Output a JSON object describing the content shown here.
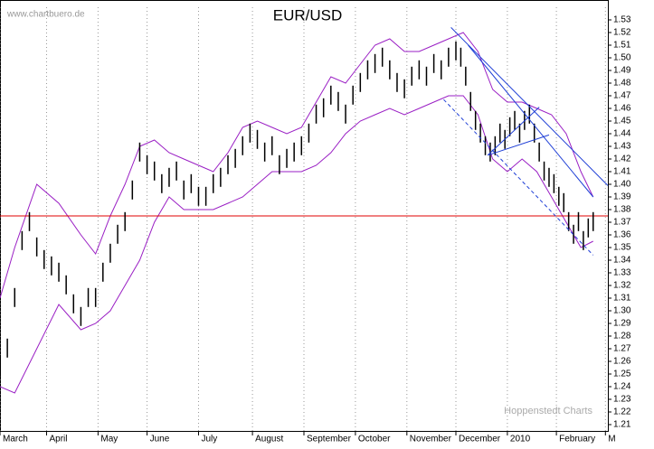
{
  "chart_data": {
    "type": "ohlc",
    "title": "EUR/USD",
    "source": "www.chartbuero.de",
    "credit": "Hoppenstedt Charts",
    "xlim": [
      0,
      248
    ],
    "ylim": [
      1.205,
      1.54
    ],
    "xticks": [
      {
        "value": 0,
        "label": "March"
      },
      {
        "value": 19,
        "label": "April"
      },
      {
        "value": 40,
        "label": "May"
      },
      {
        "value": 60,
        "label": "June"
      },
      {
        "value": 81,
        "label": "July"
      },
      {
        "value": 103,
        "label": "August"
      },
      {
        "value": 124,
        "label": "September"
      },
      {
        "value": 145,
        "label": "October"
      },
      {
        "value": 166,
        "label": "November"
      },
      {
        "value": 186,
        "label": "December"
      },
      {
        "value": 207,
        "label": "2010"
      },
      {
        "value": 227,
        "label": "February"
      },
      {
        "value": 247,
        "label": "M"
      }
    ],
    "yticks": [
      1.21,
      {
        "value": 1.22,
        "label": "1.22"
      },
      1.23,
      1.24,
      1.25,
      1.26,
      1.27,
      1.28,
      1.29,
      {
        "value": 1.3,
        "label": "1.30"
      },
      1.31,
      1.32,
      1.33,
      1.34,
      1.35,
      1.36,
      1.37,
      1.38,
      1.39,
      {
        "value": 1.4,
        "label": "1.40"
      },
      1.41,
      1.42,
      1.43,
      1.44,
      1.45,
      1.46,
      1.47,
      1.48,
      1.49,
      {
        "value": 1.5,
        "label": "1.50"
      },
      1.51,
      1.52,
      1.53
    ],
    "bars": {
      "color": "#000000",
      "x": [
        0,
        3,
        6,
        9,
        12,
        15,
        18,
        21,
        24,
        27,
        30,
        33,
        36,
        39,
        42,
        45,
        48,
        51,
        54,
        57,
        60,
        63,
        66,
        69,
        72,
        75,
        78,
        81,
        84,
        87,
        90,
        93,
        96,
        99,
        102,
        105,
        108,
        111,
        114,
        117,
        120,
        123,
        126,
        129,
        132,
        135,
        138,
        141,
        144,
        147,
        150,
        153,
        156,
        159,
        162,
        165,
        168,
        171,
        174,
        177,
        180,
        183,
        186,
        188,
        190,
        192,
        194,
        196,
        198,
        200,
        202,
        204,
        206,
        208,
        210,
        212,
        214,
        216,
        218,
        220,
        222,
        224,
        226,
        228,
        230,
        232,
        234,
        236,
        238,
        240,
        242
      ],
      "high": [
        1.263,
        1.278,
        1.318,
        1.363,
        1.378,
        1.358,
        1.348,
        1.343,
        1.338,
        1.328,
        1.313,
        1.303,
        1.318,
        1.318,
        1.338,
        1.353,
        1.368,
        1.378,
        1.403,
        1.433,
        1.423,
        1.418,
        1.408,
        1.413,
        1.418,
        1.403,
        1.408,
        1.398,
        1.398,
        1.408,
        1.413,
        1.423,
        1.428,
        1.438,
        1.448,
        1.443,
        1.433,
        1.438,
        1.423,
        1.428,
        1.433,
        1.438,
        1.448,
        1.463,
        1.468,
        1.478,
        1.473,
        1.463,
        1.478,
        1.488,
        1.498,
        1.503,
        1.508,
        1.498,
        1.488,
        1.483,
        1.493,
        1.498,
        1.493,
        1.503,
        1.498,
        1.508,
        1.513,
        1.508,
        1.493,
        1.473,
        1.458,
        1.448,
        1.438,
        1.433,
        1.438,
        1.448,
        1.443,
        1.453,
        1.458,
        1.448,
        1.458,
        1.463,
        1.448,
        1.433,
        1.418,
        1.413,
        1.408,
        1.398,
        1.393,
        1.378,
        1.368,
        1.378,
        1.363,
        1.373,
        1.378
      ],
      "low": [
        1.248,
        1.263,
        1.303,
        1.348,
        1.363,
        1.343,
        1.333,
        1.328,
        1.323,
        1.313,
        1.298,
        1.288,
        1.303,
        1.303,
        1.323,
        1.338,
        1.353,
        1.363,
        1.388,
        1.418,
        1.408,
        1.403,
        1.393,
        1.398,
        1.403,
        1.388,
        1.393,
        1.383,
        1.383,
        1.393,
        1.398,
        1.408,
        1.413,
        1.423,
        1.433,
        1.428,
        1.418,
        1.423,
        1.408,
        1.413,
        1.418,
        1.423,
        1.433,
        1.448,
        1.453,
        1.463,
        1.458,
        1.448,
        1.463,
        1.473,
        1.483,
        1.488,
        1.493,
        1.483,
        1.473,
        1.468,
        1.478,
        1.483,
        1.478,
        1.488,
        1.483,
        1.493,
        1.498,
        1.493,
        1.478,
        1.458,
        1.443,
        1.433,
        1.423,
        1.418,
        1.423,
        1.433,
        1.428,
        1.438,
        1.443,
        1.433,
        1.443,
        1.448,
        1.433,
        1.418,
        1.403,
        1.398,
        1.393,
        1.383,
        1.378,
        1.363,
        1.353,
        1.363,
        1.348,
        1.358,
        1.363
      ]
    },
    "bands": {
      "color": "#9a1fc4",
      "x": [
        0,
        6,
        15,
        24,
        33,
        39,
        45,
        51,
        57,
        63,
        69,
        75,
        81,
        87,
        93,
        99,
        105,
        111,
        117,
        123,
        129,
        135,
        141,
        147,
        153,
        159,
        165,
        171,
        177,
        183,
        189,
        195,
        201,
        207,
        213,
        219,
        225,
        231,
        237,
        242
      ],
      "upper": [
        1.31,
        1.35,
        1.4,
        1.385,
        1.36,
        1.345,
        1.375,
        1.4,
        1.43,
        1.435,
        1.425,
        1.42,
        1.415,
        1.41,
        1.425,
        1.445,
        1.45,
        1.445,
        1.44,
        1.445,
        1.465,
        1.485,
        1.48,
        1.495,
        1.51,
        1.515,
        1.505,
        1.505,
        1.51,
        1.515,
        1.52,
        1.505,
        1.475,
        1.465,
        1.465,
        1.46,
        1.455,
        1.44,
        1.41,
        1.39
      ],
      "lower": [
        1.24,
        1.235,
        1.27,
        1.305,
        1.285,
        1.29,
        1.3,
        1.32,
        1.34,
        1.37,
        1.39,
        1.38,
        1.38,
        1.38,
        1.385,
        1.39,
        1.4,
        1.41,
        1.41,
        1.41,
        1.415,
        1.425,
        1.44,
        1.45,
        1.455,
        1.46,
        1.455,
        1.46,
        1.465,
        1.47,
        1.47,
        1.455,
        1.42,
        1.41,
        1.42,
        1.41,
        1.39,
        1.37,
        1.35,
        1.355
      ]
    },
    "trend_lines": [
      {
        "x": [
          184,
          248
        ],
        "y": [
          1.524,
          1.399
        ],
        "color": "#1f3fd6",
        "dashed": false
      },
      {
        "x": [
          199,
          220
        ],
        "y": [
          1.423,
          1.461
        ],
        "color": "#1f3fd6",
        "dashed": false
      },
      {
        "x": [
          199,
          224
        ],
        "y": [
          1.423,
          1.439
        ],
        "color": "#1f3fd6",
        "dashed": false
      },
      {
        "x": [
          191,
          242
        ],
        "y": [
          1.51,
          1.39
        ],
        "color": "#1f3fd6",
        "dashed": false
      },
      {
        "x": [
          181,
          242
        ],
        "y": [
          1.467,
          1.344
        ],
        "color": "#1f3fd6",
        "dashed": true
      }
    ],
    "hlines": [
      {
        "y": 1.375,
        "color": "#e00000"
      }
    ]
  }
}
